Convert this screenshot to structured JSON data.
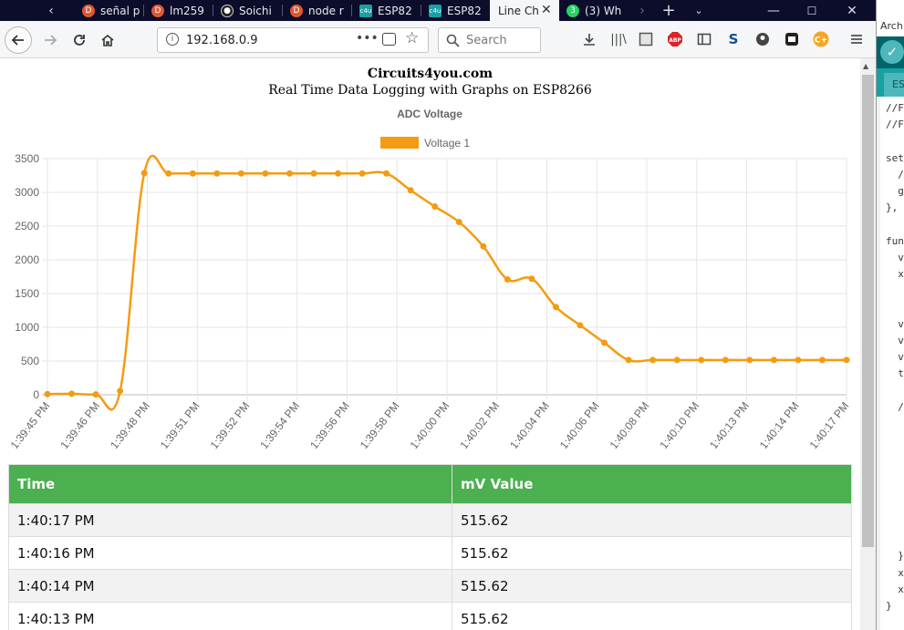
{
  "browser": {
    "tabs": [
      {
        "label": "señal p",
        "icon": "duckduckgo-icon",
        "active": false
      },
      {
        "label": "lm259",
        "icon": "duckduckgo-icon",
        "active": false
      },
      {
        "label": "Soichi",
        "icon": "github-icon",
        "active": false
      },
      {
        "label": "node r",
        "icon": "duckduckgo-icon",
        "active": false
      },
      {
        "label": "ESP82",
        "icon": "c4u-icon",
        "active": false
      },
      {
        "label": "ESP82",
        "icon": "c4u-icon",
        "active": false
      },
      {
        "label": "Line Ch",
        "icon": "",
        "active": true
      },
      {
        "label": "(3) Wh",
        "icon": "whatsapp-icon",
        "badge": "3",
        "active": false
      }
    ],
    "url": "192.168.0.9",
    "search_placeholder": "Search"
  },
  "page": {
    "site_name": "Circuits4you.com",
    "subtitle": "Real Time Data Logging with Graphs on ESP8266"
  },
  "chart_data": {
    "type": "line",
    "title": "ADC Voltage",
    "legend_position": "top",
    "grid": true,
    "ylim": [
      0,
      3500
    ],
    "yticks": [
      0,
      500,
      1000,
      1500,
      2000,
      2500,
      3000,
      3500
    ],
    "x_tick_labels": [
      "1:39:45 PM",
      "1:39:46 PM",
      "1:39:48 PM",
      "1:39:51 PM",
      "1:39:52 PM",
      "1:39:54 PM",
      "1:39:56 PM",
      "1:39:58 PM",
      "1:40:00 PM",
      "1:40:02 PM",
      "1:40:04 PM",
      "1:40:06 PM",
      "1:40:08 PM",
      "1:40:10 PM",
      "1:40:13 PM",
      "1:40:14 PM",
      "1:40:17 PM"
    ],
    "series": [
      {
        "name": "Voltage 1",
        "color": "#f39c12",
        "values": [
          10,
          15,
          5,
          55,
          3285,
          3280,
          3280,
          3280,
          3280,
          3280,
          3280,
          3280,
          3280,
          3280,
          3280,
          3030,
          2790,
          2560,
          2200,
          1710,
          1720,
          1300,
          1030,
          770,
          515,
          516,
          516,
          516,
          516,
          516,
          516,
          516,
          516,
          516
        ]
      }
    ]
  },
  "table": {
    "headers": [
      "Time",
      "mV Value"
    ],
    "rows": [
      [
        "1:40:17 PM",
        "515.62"
      ],
      [
        "1:40:16 PM",
        "515.62"
      ],
      [
        "1:40:14 PM",
        "515.62"
      ],
      [
        "1:40:13 PM",
        "515.62"
      ]
    ]
  },
  "editor": {
    "title_fragment": "Arch",
    "tab_fragment": "ES",
    "code_lines": [
      "//F",
      "//F",
      "",
      "set",
      "  /",
      "  g",
      "},",
      "",
      "fun",
      "  v",
      "  x",
      "",
      "",
      "  v",
      "  v",
      "  v",
      "  t",
      "",
      "  /",
      "",
      "",
      "",
      "",
      "",
      "",
      "",
      "",
      "  }",
      "  x",
      "  x",
      "}"
    ]
  }
}
